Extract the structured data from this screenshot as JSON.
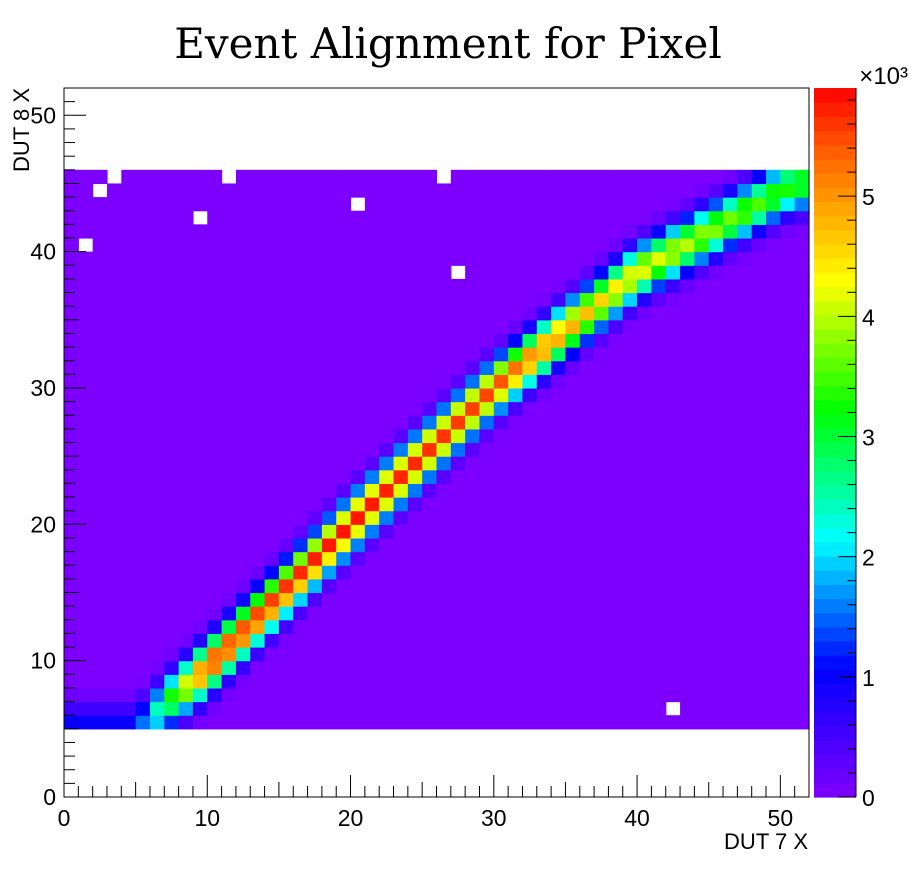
{
  "chart_data": {
    "type": "heatmap",
    "title": "Event Alignment for Pixel",
    "xlabel": "DUT 7 X",
    "ylabel": "DUT 8 X",
    "xlim": [
      0,
      52
    ],
    "ylim": [
      0,
      52
    ],
    "x_ticks": [
      "0",
      "10",
      "20",
      "30",
      "40",
      "50"
    ],
    "y_ticks": [
      "0",
      "10",
      "20",
      "30",
      "40",
      "50"
    ],
    "z_ticks": [
      "0",
      "1",
      "2",
      "3",
      "4",
      "5"
    ],
    "z_multiplier": "×10³",
    "zlim": [
      0,
      5900
    ],
    "cols": [
      0,
      52
    ],
    "rows": [
      5,
      46
    ],
    "background_value": 25,
    "diagonal": {
      "description_points_x": [
        5,
        10,
        20,
        30,
        40,
        51
      ],
      "description_points_y": [
        5,
        9.5,
        20,
        30,
        38.5,
        45
      ],
      "max_counts": [
        1100,
        5600,
        5800,
        5500,
        4300,
        3300
      ]
    },
    "empty_bins": [
      [
        2,
        44
      ],
      [
        3,
        45
      ],
      [
        11,
        45
      ],
      [
        26,
        45
      ],
      [
        20,
        43
      ],
      [
        9,
        42
      ],
      [
        1,
        40
      ],
      [
        27,
        38
      ],
      [
        42,
        6
      ]
    ],
    "palette": [
      "#8000ff",
      "#4000ff",
      "#0000ff",
      "#0080ff",
      "#00ffff",
      "#00ff80",
      "#00ff00",
      "#80ff00",
      "#ffff00",
      "#ffb000",
      "#ff6000",
      "#ff0000"
    ]
  }
}
